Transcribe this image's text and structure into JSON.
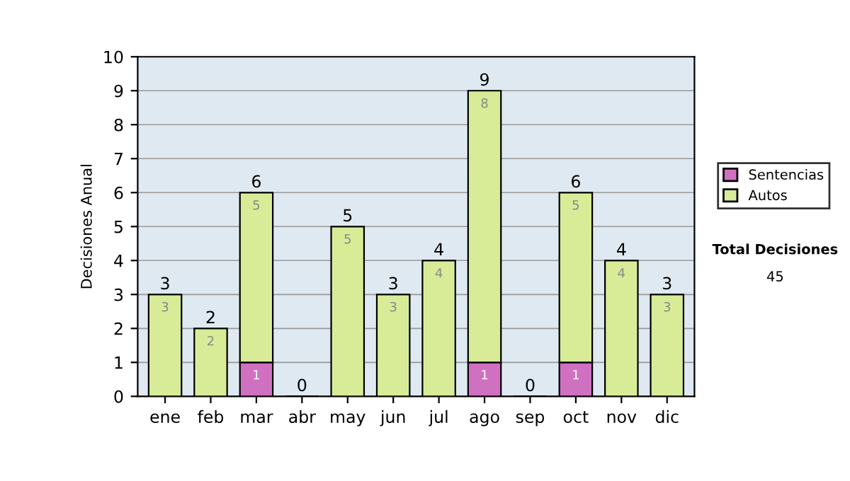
{
  "chart_data": {
    "type": "bar",
    "ylabel": "Decisiones Anual",
    "categories": [
      "ene",
      "feb",
      "mar",
      "abr",
      "may",
      "jun",
      "jul",
      "ago",
      "sep",
      "oct",
      "nov",
      "dic"
    ],
    "stacked": true,
    "series": [
      {
        "name": "Sentencias",
        "color": "#d070c0",
        "values": [
          0,
          0,
          1,
          0,
          0,
          0,
          0,
          1,
          0,
          1,
          0,
          0
        ],
        "value_labels": [
          null,
          null,
          "1",
          null,
          null,
          null,
          null,
          "1",
          null,
          "1",
          null,
          null
        ]
      },
      {
        "name": "Autos",
        "color": "#d8ec98",
        "values": [
          3,
          2,
          5,
          0,
          5,
          3,
          4,
          8,
          0,
          5,
          4,
          3
        ],
        "value_labels": [
          "3",
          "2",
          "5",
          null,
          "5",
          "3",
          "4",
          "8",
          null,
          "5",
          "4",
          "3"
        ]
      }
    ],
    "totals": [
      "3",
      "2",
      "6",
      "0",
      "5",
      "3",
      "4",
      "9",
      "0",
      "6",
      "4",
      "3"
    ],
    "ylim": [
      0,
      10
    ],
    "yticks": [
      0,
      1,
      2,
      3,
      4,
      5,
      6,
      7,
      8,
      9,
      10
    ],
    "grid": "y",
    "legend": "right",
    "annotations": [
      "Total Decisiones",
      "45"
    ]
  }
}
